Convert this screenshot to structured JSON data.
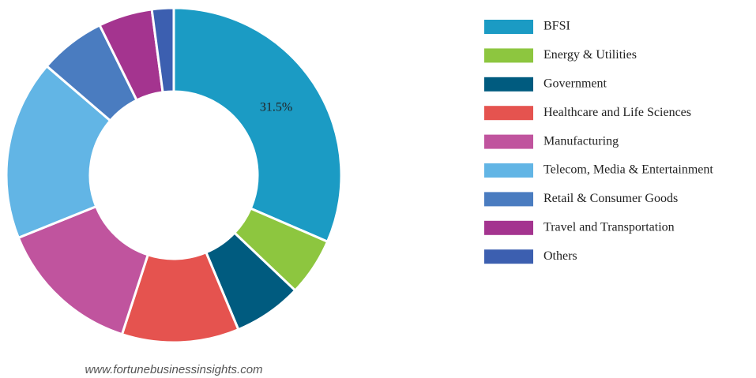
{
  "chart_data": {
    "type": "donut",
    "categories": [
      "BFSI",
      "Energy & Utilities",
      "Government",
      "Healthcare and Life Sciences",
      "Manufacturing",
      "Telecom, Media & Entertainment",
      "Retail & Consumer Goods",
      "Travel and Transportation",
      "Others"
    ],
    "values": [
      31.5,
      5.6,
      6.6,
      11.3,
      13.9,
      17.4,
      6.4,
      5.2,
      2.1
    ],
    "value_labels": [
      "31.5%",
      null,
      null,
      null,
      null,
      null,
      null,
      null,
      null
    ],
    "colors": [
      "#1b9bc4",
      "#8dc63f",
      "#005b7f",
      "#e5534f",
      "#c0549e",
      "#62b5e5",
      "#4a7cc0",
      "#a4348f",
      "#3c5fb0"
    ],
    "legend": "right",
    "source": "www.fortunebusinessinsights.com"
  }
}
